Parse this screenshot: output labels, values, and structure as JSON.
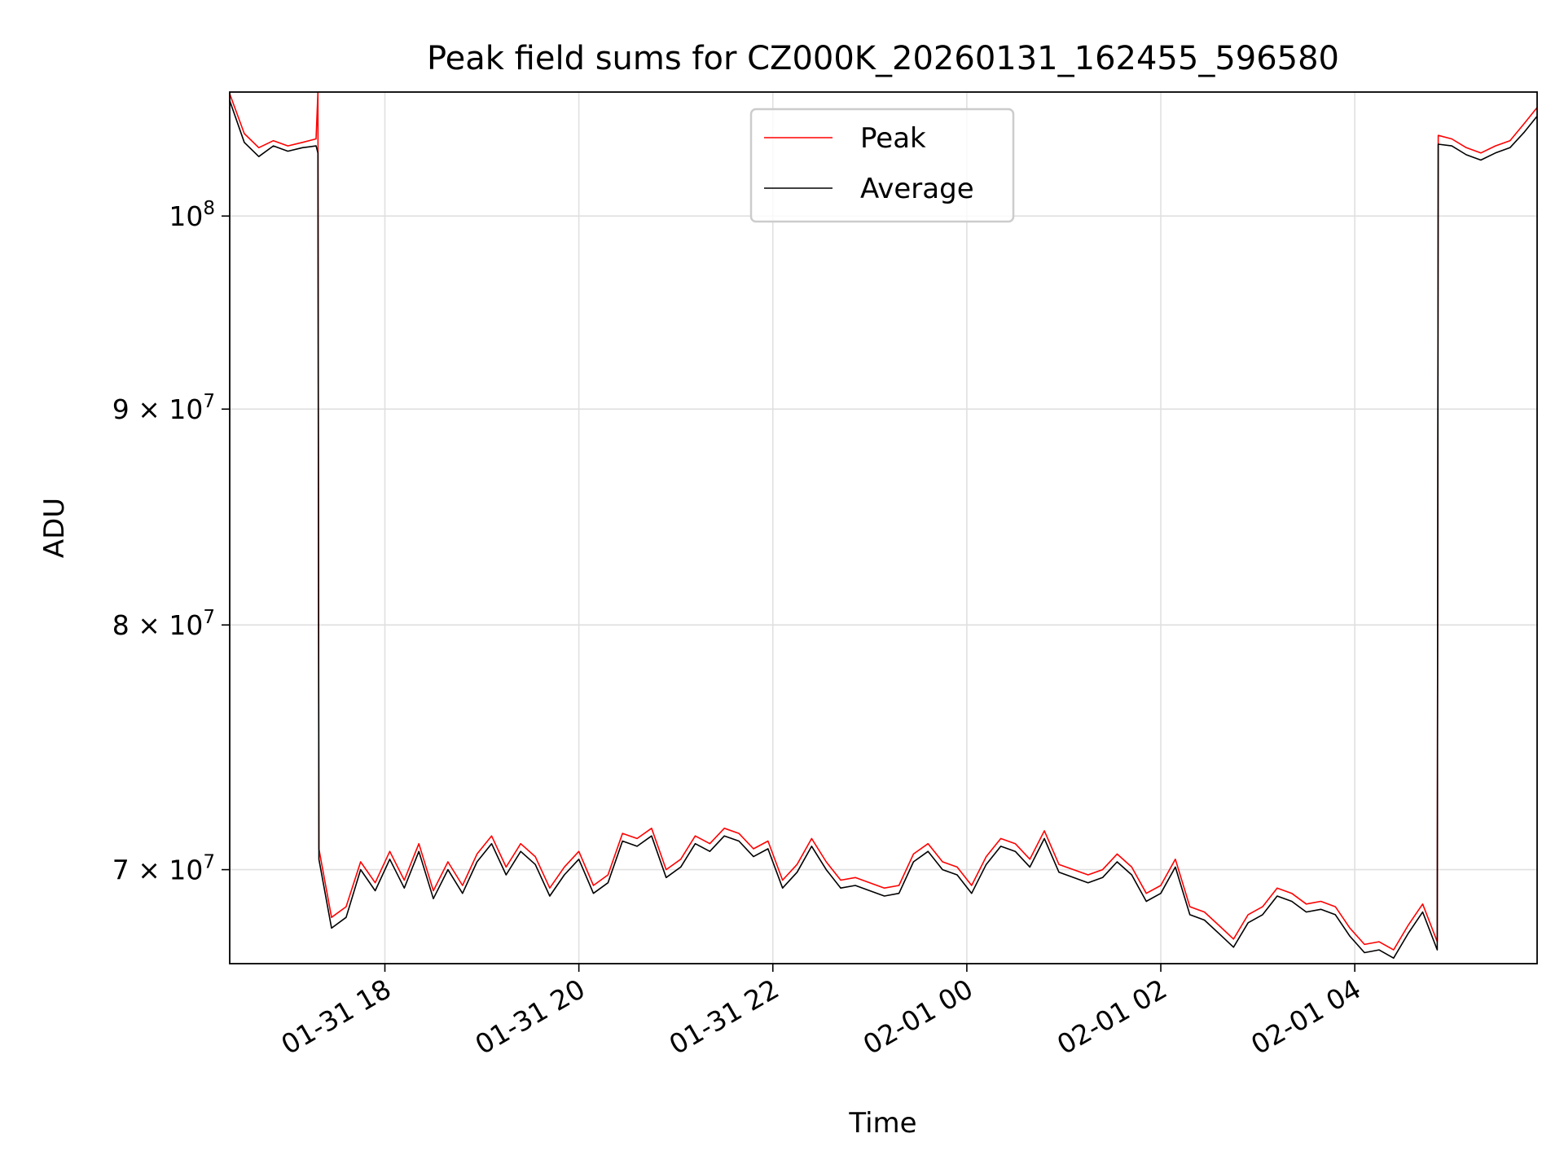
{
  "chart_data": {
    "type": "line",
    "title": "Peak field sums for CZ000K_20260131_162455_596580",
    "xlabel": "Time",
    "ylabel": "ADU",
    "yscale": "log",
    "ylim": [
      66500000,
      107000000
    ],
    "xlim_hours": [
      16.4,
      29.88
    ],
    "grid": true,
    "legend_position": "upper-center",
    "x_ticks": [
      {
        "hours": 18,
        "label": "01-31 18"
      },
      {
        "hours": 20,
        "label": "01-31 20"
      },
      {
        "hours": 22,
        "label": "01-31 22"
      },
      {
        "hours": 24,
        "label": "02-01 00"
      },
      {
        "hours": 26,
        "label": "02-01 02"
      },
      {
        "hours": 28,
        "label": "02-01 04"
      }
    ],
    "y_ticks": [
      {
        "value": 100000000,
        "base": "10",
        "exp": "8"
      },
      {
        "value": 90000000,
        "base": "9 × 10",
        "exp": "7"
      },
      {
        "value": 80000000,
        "base": "8 × 10",
        "exp": "7"
      },
      {
        "value": 70000000,
        "base": "7 × 10",
        "exp": "7"
      }
    ],
    "series": [
      {
        "name": "Peak",
        "color": "#ff0000",
        "points": [
          [
            16.4,
            106.9
          ],
          [
            16.55,
            104.6
          ],
          [
            16.7,
            103.8
          ],
          [
            16.85,
            104.2
          ],
          [
            17.0,
            103.9
          ],
          [
            17.15,
            104.1
          ],
          [
            17.29,
            104.3
          ],
          [
            17.31,
            107.0
          ],
          [
            17.32,
            70.8
          ],
          [
            17.45,
            68.2
          ],
          [
            17.6,
            68.6
          ],
          [
            17.75,
            70.3
          ],
          [
            17.9,
            69.5
          ],
          [
            18.05,
            70.7
          ],
          [
            18.2,
            69.6
          ],
          [
            18.35,
            71.0
          ],
          [
            18.5,
            69.2
          ],
          [
            18.65,
            70.3
          ],
          [
            18.8,
            69.4
          ],
          [
            18.95,
            70.6
          ],
          [
            19.1,
            71.3
          ],
          [
            19.25,
            70.1
          ],
          [
            19.4,
            71.0
          ],
          [
            19.55,
            70.5
          ],
          [
            19.7,
            69.3
          ],
          [
            19.85,
            70.1
          ],
          [
            20.0,
            70.7
          ],
          [
            20.15,
            69.4
          ],
          [
            20.3,
            69.8
          ],
          [
            20.45,
            71.4
          ],
          [
            20.6,
            71.2
          ],
          [
            20.75,
            71.6
          ],
          [
            20.9,
            70.0
          ],
          [
            21.05,
            70.4
          ],
          [
            21.2,
            71.3
          ],
          [
            21.35,
            71.0
          ],
          [
            21.5,
            71.6
          ],
          [
            21.65,
            71.4
          ],
          [
            21.8,
            70.8
          ],
          [
            21.95,
            71.1
          ],
          [
            22.1,
            69.6
          ],
          [
            22.25,
            70.2
          ],
          [
            22.4,
            71.2
          ],
          [
            22.55,
            70.3
          ],
          [
            22.7,
            69.6
          ],
          [
            22.85,
            69.7
          ],
          [
            23.0,
            69.5
          ],
          [
            23.15,
            69.3
          ],
          [
            23.3,
            69.4
          ],
          [
            23.45,
            70.6
          ],
          [
            23.6,
            71.0
          ],
          [
            23.75,
            70.3
          ],
          [
            23.9,
            70.1
          ],
          [
            24.05,
            69.4
          ],
          [
            24.2,
            70.5
          ],
          [
            24.35,
            71.2
          ],
          [
            24.5,
            71.0
          ],
          [
            24.65,
            70.4
          ],
          [
            24.8,
            71.5
          ],
          [
            24.95,
            70.2
          ],
          [
            25.1,
            70.0
          ],
          [
            25.25,
            69.8
          ],
          [
            25.4,
            70.0
          ],
          [
            25.55,
            70.6
          ],
          [
            25.7,
            70.1
          ],
          [
            25.85,
            69.1
          ],
          [
            26.0,
            69.4
          ],
          [
            26.15,
            70.4
          ],
          [
            26.3,
            68.6
          ],
          [
            26.45,
            68.4
          ],
          [
            26.6,
            67.9
          ],
          [
            26.75,
            67.4
          ],
          [
            26.9,
            68.3
          ],
          [
            27.05,
            68.6
          ],
          [
            27.2,
            69.3
          ],
          [
            27.35,
            69.1
          ],
          [
            27.5,
            68.7
          ],
          [
            27.65,
            68.8
          ],
          [
            27.8,
            68.6
          ],
          [
            27.95,
            67.8
          ],
          [
            28.1,
            67.2
          ],
          [
            28.25,
            67.3
          ],
          [
            28.4,
            67.0
          ],
          [
            28.55,
            67.9
          ],
          [
            28.7,
            68.7
          ],
          [
            28.85,
            67.3
          ],
          [
            28.86,
            104.5
          ],
          [
            29.0,
            104.3
          ],
          [
            29.15,
            103.8
          ],
          [
            29.3,
            103.5
          ],
          [
            29.45,
            103.9
          ],
          [
            29.6,
            104.2
          ],
          [
            29.75,
            105.2
          ],
          [
            29.88,
            106.1
          ]
        ]
      },
      {
        "name": "Average",
        "color": "#000000",
        "points": [
          [
            16.4,
            106.5
          ],
          [
            16.55,
            104.1
          ],
          [
            16.7,
            103.3
          ],
          [
            16.85,
            103.9
          ],
          [
            17.0,
            103.6
          ],
          [
            17.15,
            103.8
          ],
          [
            17.29,
            103.9
          ],
          [
            17.31,
            103.5
          ],
          [
            17.32,
            70.4
          ],
          [
            17.45,
            67.8
          ],
          [
            17.6,
            68.2
          ],
          [
            17.75,
            70.0
          ],
          [
            17.9,
            69.2
          ],
          [
            18.05,
            70.4
          ],
          [
            18.2,
            69.3
          ],
          [
            18.35,
            70.7
          ],
          [
            18.5,
            68.9
          ],
          [
            18.65,
            70.0
          ],
          [
            18.8,
            69.1
          ],
          [
            18.95,
            70.3
          ],
          [
            19.1,
            71.0
          ],
          [
            19.25,
            69.8
          ],
          [
            19.4,
            70.7
          ],
          [
            19.55,
            70.2
          ],
          [
            19.7,
            69.0
          ],
          [
            19.85,
            69.8
          ],
          [
            20.0,
            70.4
          ],
          [
            20.15,
            69.1
          ],
          [
            20.3,
            69.5
          ],
          [
            20.45,
            71.1
          ],
          [
            20.6,
            70.9
          ],
          [
            20.75,
            71.3
          ],
          [
            20.9,
            69.7
          ],
          [
            21.05,
            70.1
          ],
          [
            21.2,
            71.0
          ],
          [
            21.35,
            70.7
          ],
          [
            21.5,
            71.3
          ],
          [
            21.65,
            71.1
          ],
          [
            21.8,
            70.5
          ],
          [
            21.95,
            70.8
          ],
          [
            22.1,
            69.3
          ],
          [
            22.25,
            69.9
          ],
          [
            22.4,
            70.9
          ],
          [
            22.55,
            70.0
          ],
          [
            22.7,
            69.3
          ],
          [
            22.85,
            69.4
          ],
          [
            23.0,
            69.2
          ],
          [
            23.15,
            69.0
          ],
          [
            23.3,
            69.1
          ],
          [
            23.45,
            70.3
          ],
          [
            23.6,
            70.7
          ],
          [
            23.75,
            70.0
          ],
          [
            23.9,
            69.8
          ],
          [
            24.05,
            69.1
          ],
          [
            24.2,
            70.2
          ],
          [
            24.35,
            70.9
          ],
          [
            24.5,
            70.7
          ],
          [
            24.65,
            70.1
          ],
          [
            24.8,
            71.2
          ],
          [
            24.95,
            69.9
          ],
          [
            25.1,
            69.7
          ],
          [
            25.25,
            69.5
          ],
          [
            25.4,
            69.7
          ],
          [
            25.55,
            70.3
          ],
          [
            25.7,
            69.8
          ],
          [
            25.85,
            68.8
          ],
          [
            26.0,
            69.1
          ],
          [
            26.15,
            70.1
          ],
          [
            26.3,
            68.3
          ],
          [
            26.45,
            68.1
          ],
          [
            26.6,
            67.6
          ],
          [
            26.75,
            67.1
          ],
          [
            26.9,
            68.0
          ],
          [
            27.05,
            68.3
          ],
          [
            27.2,
            69.0
          ],
          [
            27.35,
            68.8
          ],
          [
            27.5,
            68.4
          ],
          [
            27.65,
            68.5
          ],
          [
            27.8,
            68.3
          ],
          [
            27.95,
            67.5
          ],
          [
            28.1,
            66.9
          ],
          [
            28.25,
            67.0
          ],
          [
            28.4,
            66.7
          ],
          [
            28.55,
            67.6
          ],
          [
            28.7,
            68.4
          ],
          [
            28.85,
            67.0
          ],
          [
            28.86,
            104.0
          ],
          [
            29.0,
            103.9
          ],
          [
            29.15,
            103.4
          ],
          [
            29.3,
            103.1
          ],
          [
            29.45,
            103.5
          ],
          [
            29.6,
            103.8
          ],
          [
            29.75,
            104.7
          ],
          [
            29.88,
            105.6
          ]
        ]
      }
    ]
  }
}
